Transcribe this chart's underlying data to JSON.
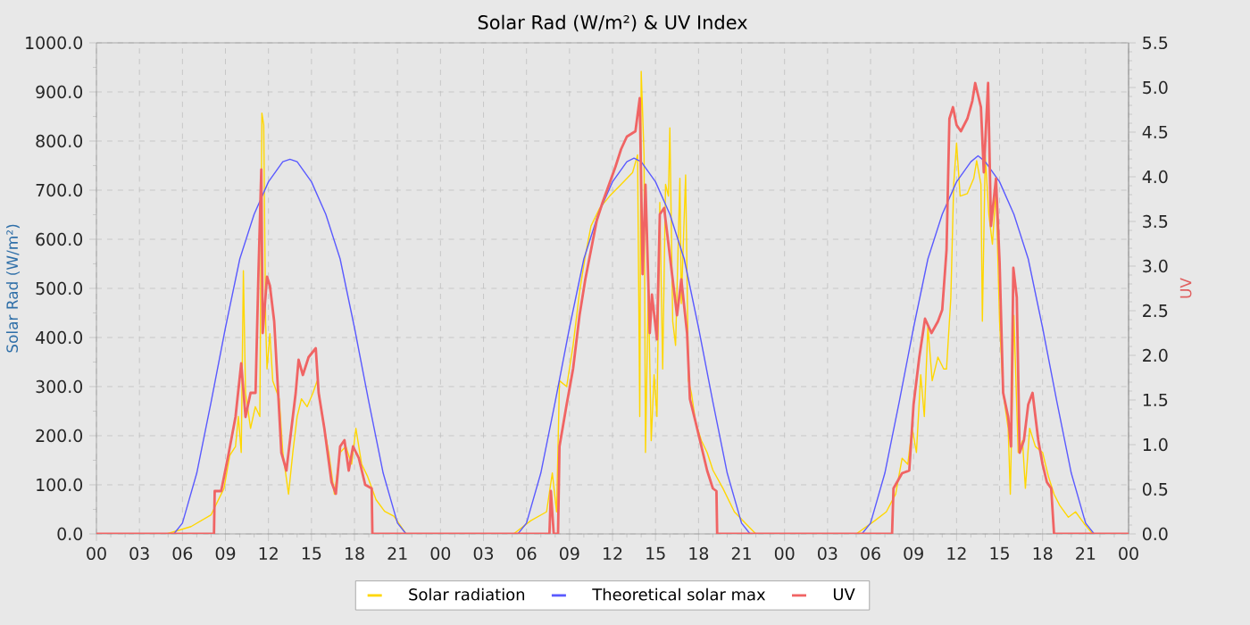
{
  "chart_data": {
    "type": "line",
    "title": "Solar Rad (W/m²) &  UV Index",
    "ylabel": "Solar Rad (W/m²)",
    "y2label": "UV",
    "xlim": [
      0,
      72
    ],
    "xticks": [
      {
        "value": 0,
        "label": "00"
      },
      {
        "value": 3,
        "label": "03"
      },
      {
        "value": 6,
        "label": "06"
      },
      {
        "value": 9,
        "label": "09"
      },
      {
        "value": 12,
        "label": "12"
      },
      {
        "value": 15,
        "label": "15"
      },
      {
        "value": 18,
        "label": "18"
      },
      {
        "value": 21,
        "label": "21"
      },
      {
        "value": 24,
        "label": "00"
      },
      {
        "value": 27,
        "label": "03"
      },
      {
        "value": 30,
        "label": "06"
      },
      {
        "value": 33,
        "label": "09"
      },
      {
        "value": 36,
        "label": "12"
      },
      {
        "value": 39,
        "label": "15"
      },
      {
        "value": 42,
        "label": "18"
      },
      {
        "value": 45,
        "label": "21"
      },
      {
        "value": 48,
        "label": "00"
      },
      {
        "value": 51,
        "label": "03"
      },
      {
        "value": 54,
        "label": "06"
      },
      {
        "value": 57,
        "label": "09"
      },
      {
        "value": 60,
        "label": "12"
      },
      {
        "value": 63,
        "label": "15"
      },
      {
        "value": 66,
        "label": "18"
      },
      {
        "value": 69,
        "label": "21"
      },
      {
        "value": 72,
        "label": "00"
      }
    ],
    "ylim": [
      0,
      1000
    ],
    "yticks": [
      {
        "value": 0,
        "label": "0.0"
      },
      {
        "value": 100,
        "label": "100.0"
      },
      {
        "value": 200,
        "label": "200.0"
      },
      {
        "value": 300,
        "label": "300.0"
      },
      {
        "value": 400,
        "label": "400.0"
      },
      {
        "value": 500,
        "label": "500.0"
      },
      {
        "value": 600,
        "label": "600.0"
      },
      {
        "value": 700,
        "label": "700.0"
      },
      {
        "value": 800,
        "label": "800.0"
      },
      {
        "value": 900,
        "label": "900.0"
      },
      {
        "value": 1000,
        "label": "1000.0"
      }
    ],
    "y2lim": [
      0,
      5.5
    ],
    "y2ticks": [
      {
        "value": 0,
        "label": "0.0"
      },
      {
        "value": 0.5,
        "label": "0.5"
      },
      {
        "value": 1,
        "label": "1.0"
      },
      {
        "value": 1.5,
        "label": "1.5"
      },
      {
        "value": 2,
        "label": "2.0"
      },
      {
        "value": 2.5,
        "label": "2.5"
      },
      {
        "value": 3,
        "label": "3.0"
      },
      {
        "value": 3.5,
        "label": "3.5"
      },
      {
        "value": 4,
        "label": "4.0"
      },
      {
        "value": 4.5,
        "label": "4.5"
      },
      {
        "value": 5,
        "label": "5.0"
      },
      {
        "value": 5.5,
        "label": "5.5"
      }
    ],
    "grid": true,
    "legend": "bottom",
    "marker": "none",
    "series": [
      {
        "name": "Solar radiation",
        "color": "#ffd700",
        "x": [
          0,
          4.9,
          6.6,
          8.0,
          8.9,
          9.3,
          9.7,
          9.9,
          10.1,
          10.25,
          10.4,
          10.54,
          10.75,
          11.08,
          11.4,
          11.54,
          11.67,
          11.8,
          11.9,
          12.1,
          12.3,
          12.75,
          13.0,
          13.4,
          13.7,
          14.0,
          14.3,
          14.7,
          15.1,
          15.4,
          15.75,
          16.2,
          16.6,
          17.0,
          17.4,
          17.8,
          18.1,
          18.5,
          18.9,
          19.5,
          20.1,
          20.75,
          21.6,
          29.1,
          30.3,
          31.4,
          31.8,
          32.1,
          32.3,
          32.8,
          33.25,
          33.7,
          34.1,
          34.5,
          35.1,
          35.8,
          36.6,
          37.4,
          37.75,
          37.9,
          38.0,
          38.2,
          38.3,
          38.5,
          38.7,
          38.9,
          39.1,
          39.3,
          39.5,
          39.7,
          39.9,
          40.0,
          40.2,
          40.4,
          40.7,
          40.8,
          41.1,
          41.3,
          41.5,
          41.8,
          42.2,
          42.6,
          43.0,
          43.7,
          44.5,
          45.3,
          46.0,
          53.0,
          54.3,
          55.1,
          55.75,
          56.2,
          56.6,
          56.9,
          57.2,
          57.5,
          57.75,
          58.0,
          58.3,
          58.7,
          59.1,
          59.3,
          59.6,
          59.8,
          60.0,
          60.25,
          60.75,
          61.2,
          61.4,
          61.7,
          61.8,
          62.0,
          62.25,
          62.5,
          62.75,
          63.0,
          63.25,
          63.6,
          63.75,
          64.0,
          64.3,
          64.6,
          64.8,
          65.1,
          65.5,
          66.0,
          66.4,
          66.8,
          67.2,
          67.8,
          68.3,
          68.9,
          69.5,
          72
        ],
        "values": [
          0,
          0,
          15,
          39,
          93,
          160,
          178,
          239,
          166,
          536,
          287,
          259,
          215,
          259,
          239,
          857,
          833,
          433,
          336,
          408,
          312,
          275,
          166,
          81,
          166,
          239,
          275,
          259,
          287,
          312,
          239,
          166,
          81,
          166,
          178,
          142,
          215,
          142,
          118,
          70,
          46,
          36,
          0,
          0,
          27,
          45,
          124,
          45,
          312,
          300,
          384,
          493,
          566,
          627,
          663,
          688,
          712,
          736,
          772,
          239,
          942,
          772,
          166,
          505,
          190,
          324,
          239,
          675,
          336,
          712,
          688,
          827,
          433,
          384,
          724,
          469,
          731,
          312,
          287,
          227,
          190,
          166,
          130,
          93,
          45,
          21,
          0,
          0,
          27,
          45,
          81,
          154,
          142,
          215,
          166,
          324,
          239,
          421,
          312,
          360,
          336,
          336,
          481,
          712,
          796,
          688,
          693,
          724,
          760,
          712,
          433,
          772,
          651,
          590,
          700,
          433,
          287,
          215,
          81,
          445,
          166,
          190,
          93,
          215,
          178,
          166,
          118,
          81,
          58,
          34,
          45,
          21,
          0,
          0
        ]
      },
      {
        "name": "Theoretical solar max",
        "color": "#5a5aff",
        "x": [
          0,
          5.4,
          6,
          7,
          8,
          9,
          10,
          11,
          12,
          13,
          13.5,
          14,
          15,
          16,
          17,
          18,
          19,
          20,
          21,
          21.6,
          29.4,
          30,
          31,
          32,
          33,
          34,
          35,
          36,
          37,
          37.5,
          38,
          39,
          40,
          41,
          42,
          43,
          44,
          45,
          45.6,
          53.4,
          54,
          55,
          56,
          57,
          58,
          59,
          60,
          61,
          61.5,
          62,
          63,
          64,
          65,
          66,
          67,
          68,
          69,
          69.6,
          72
        ],
        "values": [
          0,
          0,
          22,
          124,
          269,
          420,
          560,
          651,
          717,
          758,
          763,
          758,
          717,
          651,
          560,
          420,
          269,
          124,
          22,
          0,
          0,
          22,
          124,
          269,
          420,
          560,
          651,
          717,
          758,
          765,
          758,
          717,
          651,
          560,
          420,
          269,
          124,
          22,
          0,
          0,
          22,
          124,
          269,
          420,
          560,
          651,
          717,
          758,
          770,
          758,
          717,
          651,
          560,
          420,
          269,
          124,
          22,
          0,
          0
        ]
      },
      {
        "name": "UV",
        "color": "#f06464",
        "axis": "y2",
        "x": [
          0,
          8.2,
          8.25,
          8.7,
          9.2,
          9.7,
          10.1,
          10.4,
          10.75,
          11.1,
          11.3,
          11.5,
          11.6,
          11.9,
          12.1,
          12.4,
          12.7,
          12.9,
          13.25,
          13.6,
          13.9,
          14.1,
          14.4,
          14.8,
          15.3,
          15.5,
          15.9,
          16.4,
          16.7,
          17.0,
          17.3,
          17.6,
          17.9,
          18.3,
          18.75,
          19.2,
          19.25,
          31.6,
          31.7,
          31.9,
          32.2,
          32.3,
          32.8,
          33.25,
          33.7,
          34.1,
          34.5,
          34.9,
          35.3,
          35.75,
          36.2,
          36.6,
          37.0,
          37.6,
          37.9,
          38.1,
          38.3,
          38.6,
          38.75,
          39.1,
          39.3,
          39.6,
          39.9,
          40.25,
          40.5,
          40.8,
          41.2,
          41.4,
          41.8,
          42.2,
          42.6,
          43.0,
          43.25,
          43.3,
          55.5,
          55.6,
          56.2,
          56.7,
          57.0,
          57.4,
          57.8,
          58.25,
          58.7,
          59.0,
          59.3,
          59.5,
          59.75,
          60.0,
          60.3,
          60.75,
          61.1,
          61.3,
          61.7,
          61.9,
          62.2,
          62.4,
          62.75,
          63.0,
          63.25,
          63.6,
          63.8,
          63.96,
          64.2,
          64.4,
          64.7,
          65.0,
          65.3,
          65.7,
          66.0,
          66.3,
          66.6,
          66.8,
          72
        ],
        "values": [
          0,
          0,
          0.48,
          0.48,
          0.88,
          1.31,
          1.91,
          1.31,
          1.58,
          1.58,
          2.91,
          4.08,
          2.25,
          2.88,
          2.78,
          2.38,
          1.51,
          0.91,
          0.71,
          1.18,
          1.58,
          1.95,
          1.78,
          1.98,
          2.08,
          1.58,
          1.18,
          0.58,
          0.45,
          0.98,
          1.05,
          0.71,
          0.98,
          0.85,
          0.55,
          0.51,
          0,
          0,
          0.48,
          0,
          0,
          0.98,
          1.45,
          1.85,
          2.45,
          2.85,
          3.18,
          3.51,
          3.71,
          3.91,
          4.11,
          4.31,
          4.45,
          4.51,
          4.88,
          2.91,
          3.91,
          2.25,
          2.68,
          2.18,
          3.58,
          3.65,
          3.25,
          2.78,
          2.45,
          2.85,
          2.25,
          1.51,
          1.25,
          0.98,
          0.71,
          0.51,
          0.48,
          0,
          0,
          0.51,
          0.68,
          0.71,
          1.45,
          1.98,
          2.41,
          2.25,
          2.38,
          2.51,
          3.18,
          4.65,
          4.78,
          4.58,
          4.51,
          4.65,
          4.85,
          5.05,
          4.78,
          4.05,
          5.05,
          3.45,
          3.98,
          3.05,
          1.58,
          1.31,
          0.98,
          2.98,
          2.65,
          0.91,
          1.05,
          1.45,
          1.58,
          1.05,
          0.78,
          0.58,
          0.51,
          0,
          0
        ]
      }
    ]
  }
}
